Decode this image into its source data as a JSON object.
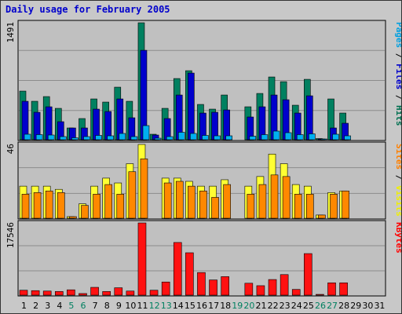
{
  "title": "Daily usage for February 2005",
  "chart_data": {
    "type": "bar",
    "title": "Daily usage for February 2005",
    "days": [
      {
        "label": "1",
        "weekend": false
      },
      {
        "label": "2",
        "weekend": false
      },
      {
        "label": "3",
        "weekend": false
      },
      {
        "label": "4",
        "weekend": false
      },
      {
        "label": "5",
        "weekend": true
      },
      {
        "label": "6",
        "weekend": true
      },
      {
        "label": "7",
        "weekend": false
      },
      {
        "label": "8",
        "weekend": false
      },
      {
        "label": "9",
        "weekend": false
      },
      {
        "label": "10",
        "weekend": false
      },
      {
        "label": "11",
        "weekend": false
      },
      {
        "label": "12",
        "weekend": true
      },
      {
        "label": "13",
        "weekend": true
      },
      {
        "label": "14",
        "weekend": false
      },
      {
        "label": "15",
        "weekend": false
      },
      {
        "label": "16",
        "weekend": false
      },
      {
        "label": "17",
        "weekend": false
      },
      {
        "label": "18",
        "weekend": false
      },
      {
        "label": "19",
        "weekend": true
      },
      {
        "label": "20",
        "weekend": true
      },
      {
        "label": "21",
        "weekend": false
      },
      {
        "label": "22",
        "weekend": false
      },
      {
        "label": "23",
        "weekend": false
      },
      {
        "label": "24",
        "weekend": false
      },
      {
        "label": "25",
        "weekend": false
      },
      {
        "label": "26",
        "weekend": true
      },
      {
        "label": "27",
        "weekend": true
      },
      {
        "label": "28",
        "weekend": false
      },
      {
        "label": "29",
        "weekend": false
      },
      {
        "label": "30",
        "weekend": false
      },
      {
        "label": "31",
        "weekend": false
      }
    ],
    "panels": [
      {
        "id": "pages-files-hits",
        "max_label": "1491",
        "ymax": 1491,
        "legend": [
          {
            "text": "Pages",
            "color": "#00a0e0"
          },
          {
            "text": " / ",
            "color": "#000000"
          },
          {
            "text": "Files",
            "color": "#0000cc"
          },
          {
            "text": " / ",
            "color": "#000000"
          },
          {
            "text": "Hits",
            "color": "#007050"
          }
        ],
        "series": [
          {
            "name": "Hits",
            "color": "#008060",
            "values": [
              620,
              490,
              550,
              400,
              150,
              270,
              520,
              480,
              670,
              490,
              1491,
              70,
              400,
              780,
              880,
              450,
              390,
              570,
              0,
              420,
              590,
              800,
              740,
              440,
              770,
              15,
              520,
              340,
              0,
              0,
              0
            ]
          },
          {
            "name": "Files",
            "color": "#0000cc",
            "values": [
              490,
              350,
              420,
              230,
              150,
              150,
              390,
              360,
              520,
              280,
              1140,
              60,
              270,
              570,
              850,
              340,
              350,
              380,
              0,
              290,
              420,
              570,
              510,
              340,
              560,
              10,
              150,
              210,
              0,
              0,
              0
            ]
          },
          {
            "name": "Pages",
            "color": "#00b0f0",
            "values": [
              70,
              65,
              60,
              40,
              25,
              40,
              55,
              50,
              80,
              40,
              180,
              20,
              40,
              95,
              80,
              55,
              50,
              50,
              0,
              45,
              65,
              110,
              90,
              65,
              75,
              5,
              70,
              50,
              0,
              0,
              0
            ]
          }
        ]
      },
      {
        "id": "visits-sites",
        "max_label": "46",
        "ymax": 46,
        "legend": [
          {
            "text": "Sites",
            "color": "#ff8000"
          },
          {
            "text": " / ",
            "color": "#000000"
          },
          {
            "text": "Visits",
            "color": "#f0f000"
          }
        ],
        "series": [
          {
            "name": "Visits",
            "color": "#ffff33",
            "values": [
              20,
              20,
              20,
              18,
              1,
              9,
              20,
              25,
              22,
              34,
              46,
              0,
              25,
              25,
              23,
              20,
              20,
              24,
              0,
              20,
              26,
              40,
              34,
              21,
              20,
              2,
              16,
              17,
              0,
              0,
              0
            ]
          },
          {
            "name": "Sites",
            "color": "#ff8800",
            "values": [
              15,
              16,
              17,
              16,
              1,
              8,
              15,
              21,
              15,
              29,
              37,
              0,
              22,
              23,
              20,
              17,
              13,
              21,
              0,
              15,
              21,
              27,
              26,
              15,
              15,
              2,
              15,
              17,
              0,
              0,
              0
            ]
          }
        ]
      },
      {
        "id": "kbytes",
        "max_label": "17546",
        "ymax": 17546,
        "legend": [
          {
            "text": "KBytes",
            "color": "#ff0000"
          }
        ],
        "series": [
          {
            "name": "KBytes",
            "color": "#ff1111",
            "values": [
              1200,
              1100,
              1000,
              900,
              1300,
              400,
              1900,
              900,
              1800,
              1000,
              17546,
              1200,
              3200,
              12800,
              10300,
              5500,
              3700,
              4500,
              0,
              2900,
              2300,
              3800,
              5000,
              1400,
              10100,
              100,
              3000,
              3000,
              0,
              0,
              0
            ]
          }
        ]
      }
    ]
  }
}
